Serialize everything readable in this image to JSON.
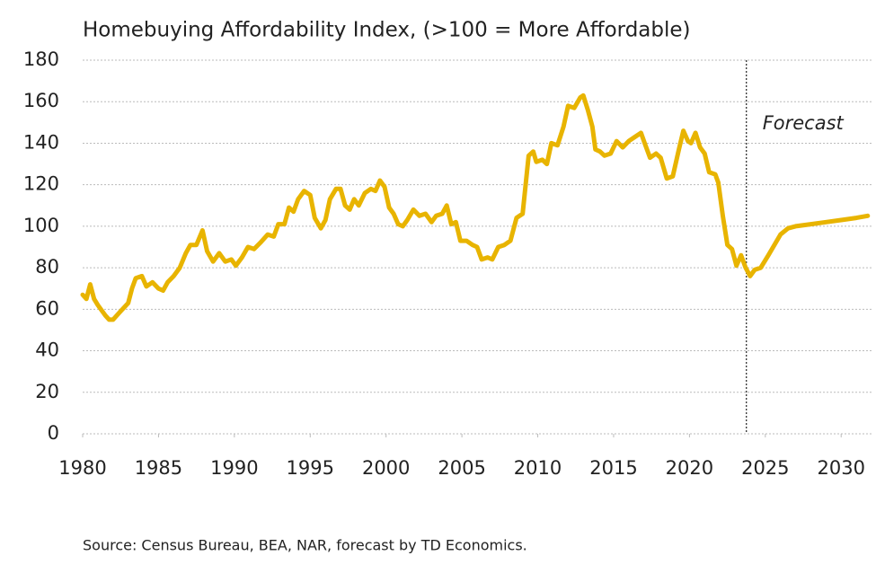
{
  "chart_data": {
    "type": "line",
    "title": "Homebuying Affordability Index, (>100 = More Affordable)",
    "source": "Source: Census Bureau, BEA, NAR, forecast by TD Economics.",
    "color": "#e8b400",
    "x": [
      1980.0,
      1980.25,
      1980.5,
      1980.75,
      1981.0,
      1981.5,
      1981.75,
      1982.0,
      1982.5,
      1983.0,
      1983.25,
      1983.5,
      1983.9,
      1984.2,
      1984.6,
      1985.0,
      1985.3,
      1985.6,
      1986.0,
      1986.4,
      1986.8,
      1987.1,
      1987.5,
      1987.9,
      1988.2,
      1988.6,
      1989.0,
      1989.4,
      1989.8,
      1990.1,
      1990.5,
      1990.9,
      1991.3,
      1991.7,
      1992.2,
      1992.6,
      1992.9,
      1993.3,
      1993.6,
      1993.9,
      1994.2,
      1994.6,
      1995.0,
      1995.3,
      1995.7,
      1996.0,
      1996.3,
      1996.7,
      1997.0,
      1997.3,
      1997.6,
      1997.9,
      1998.2,
      1998.6,
      1999.0,
      1999.3,
      1999.6,
      1999.9,
      2000.2,
      2000.5,
      2000.8,
      2001.1,
      2001.4,
      2001.8,
      2002.2,
      2002.6,
      2003.0,
      2003.3,
      2003.7,
      2004.0,
      2004.3,
      2004.6,
      2004.9,
      2005.3,
      2005.7,
      2006.0,
      2006.3,
      2006.7,
      2007.0,
      2007.4,
      2007.8,
      2008.2,
      2008.6,
      2009.0,
      2009.4,
      2009.7,
      2009.9,
      2010.3,
      2010.6,
      2010.9,
      2011.3,
      2011.7,
      2012.0,
      2012.4,
      2012.8,
      2013.0,
      2013.3,
      2013.6,
      2013.8,
      2014.1,
      2014.4,
      2014.8,
      2015.2,
      2015.6,
      2016.0,
      2016.4,
      2016.8,
      2017.1,
      2017.4,
      2017.8,
      2018.1,
      2018.5,
      2018.9,
      2019.3,
      2019.6,
      2019.9,
      2020.1,
      2020.4,
      2020.7,
      2021.0,
      2021.3,
      2021.7,
      2021.9,
      2022.2,
      2022.5,
      2022.8,
      2023.1,
      2023.4,
      2023.7,
      2024.0,
      2024.3,
      2024.7,
      2025.2,
      2025.6,
      2026.0,
      2026.5,
      2027.0,
      2028.0,
      2029.0,
      2030.0,
      2031.0,
      2031.75
    ],
    "values": [
      67,
      65,
      72,
      65,
      62,
      57,
      55,
      55,
      59,
      63,
      70,
      75,
      76,
      71,
      73,
      70,
      69,
      73,
      76,
      80,
      87,
      91,
      91,
      98,
      88,
      83,
      87,
      83,
      84,
      81,
      85,
      90,
      89,
      92,
      96,
      95,
      101,
      101,
      109,
      107,
      113,
      117,
      115,
      104,
      99,
      103,
      113,
      118,
      118,
      110,
      108,
      113,
      110,
      116,
      118,
      117,
      122,
      119,
      109,
      106,
      101,
      100,
      103,
      108,
      105,
      106,
      102,
      105,
      106,
      110,
      101,
      102,
      93,
      93,
      91,
      90,
      84,
      85,
      84,
      90,
      91,
      93,
      104,
      106,
      134,
      136,
      131,
      132,
      130,
      140,
      139,
      148,
      158,
      157,
      162,
      163,
      156,
      148,
      137,
      136,
      134,
      135,
      141,
      138,
      141,
      143,
      145,
      139,
      133,
      135,
      133,
      123,
      124,
      137,
      146,
      141,
      140,
      145,
      138,
      135,
      126,
      125,
      121,
      105,
      91,
      89,
      81,
      86,
      80,
      76,
      79,
      80,
      86,
      91,
      96,
      99,
      100,
      101,
      102,
      103,
      104,
      105
    ],
    "xlim": [
      1980,
      2032
    ],
    "xticks": [
      1980,
      1985,
      1990,
      1995,
      2000,
      2005,
      2010,
      2015,
      2020,
      2025,
      2030
    ],
    "ylim": [
      0,
      180
    ],
    "yticks": [
      0,
      20,
      40,
      60,
      80,
      100,
      120,
      140,
      160,
      180
    ],
    "grid": true,
    "annotations": [
      {
        "text": "Forecast",
        "x": 2023.75
      }
    ]
  }
}
